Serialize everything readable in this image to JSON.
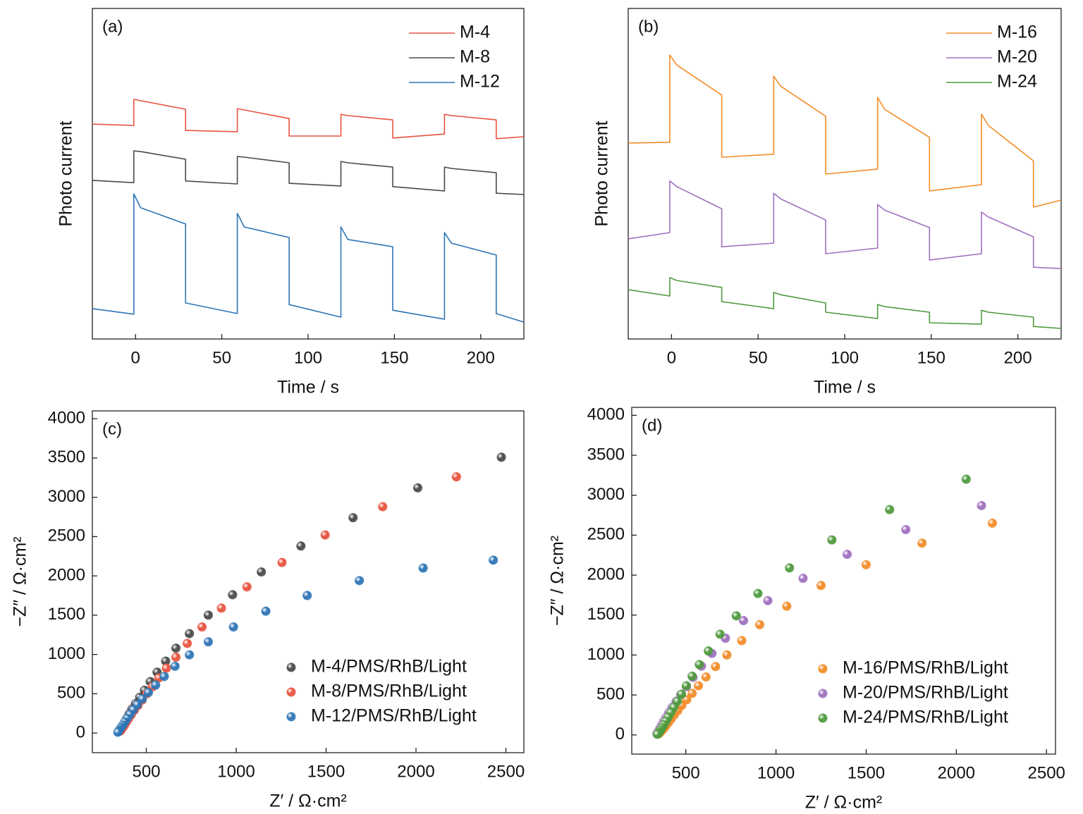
{
  "chart_data": [
    {
      "type": "line",
      "title": "(a)",
      "xlabel": "Time / s",
      "ylabel": "Photo current",
      "xlim": [
        -25,
        225
      ],
      "xticks": [
        0,
        50,
        100,
        150,
        200
      ],
      "ylim": [
        0,
        100
      ],
      "legend": "upper right",
      "x": [
        -25,
        -1,
        -1,
        3,
        29,
        29,
        59,
        59,
        63,
        89,
        89,
        119,
        119,
        123,
        149,
        149,
        179,
        179,
        183,
        209,
        209,
        225
      ],
      "series": [
        {
          "name": "M-4",
          "color": "#e8533f",
          "values": [
            65.0,
            64.6,
            72.5,
            72.1,
            69.5,
            63.1,
            62.7,
            69.7,
            69.3,
            66.7,
            61.4,
            61.4,
            68.0,
            67.6,
            66.3,
            60.8,
            62.0,
            68.0,
            67.6,
            66.3,
            60.6,
            61.2
          ]
        },
        {
          "name": "M-8",
          "color": "#4a4a4a",
          "values": [
            48.0,
            47.3,
            56.9,
            56.7,
            54.4,
            47.8,
            46.9,
            55.2,
            55.0,
            53.3,
            47.1,
            46.3,
            53.7,
            53.3,
            52.0,
            46.1,
            44.8,
            52.0,
            51.6,
            50.3,
            44.1,
            43.7
          ]
        },
        {
          "name": "M-12",
          "color": "#2e75b6",
          "values": [
            9.2,
            7.5,
            43.9,
            39.7,
            34.8,
            10.9,
            7.7,
            38.0,
            33.9,
            30.7,
            10.4,
            6.6,
            33.9,
            30.1,
            27.9,
            8.7,
            6.0,
            32.2,
            29.0,
            25.4,
            7.7,
            5.1
          ]
        }
      ]
    },
    {
      "type": "line",
      "title": "(b)",
      "xlabel": "Time / s",
      "ylabel": "Photo current",
      "xlim": [
        -25,
        225
      ],
      "xticks": [
        0,
        50,
        100,
        150,
        200
      ],
      "ylim": [
        0,
        100
      ],
      "legend": "upper right",
      "x": [
        -25,
        -1,
        -1,
        3,
        29,
        29,
        59,
        59,
        63,
        89,
        89,
        119,
        119,
        123,
        149,
        149,
        179,
        179,
        183,
        209,
        209,
        225
      ],
      "series": [
        {
          "name": "M-16",
          "color": "#f28c28",
          "values": [
            59.3,
            59.5,
            85.9,
            82.9,
            73.8,
            55.0,
            55.9,
            79.5,
            76.5,
            67.4,
            49.9,
            51.4,
            73.1,
            69.5,
            61.0,
            44.8,
            46.7,
            68.0,
            64.6,
            53.9,
            39.9,
            42.0
          ]
        },
        {
          "name": "M-20",
          "color": "#a070c0",
          "values": [
            30.3,
            32.2,
            47.8,
            46.1,
            39.4,
            27.9,
            29.0,
            44.1,
            42.4,
            36.0,
            25.8,
            27.5,
            40.7,
            39.0,
            33.7,
            23.9,
            25.8,
            38.4,
            36.9,
            30.9,
            21.7,
            21.3
          ]
        },
        {
          "name": "M-24",
          "color": "#4e9a3e",
          "values": [
            14.9,
            13.0,
            18.6,
            17.7,
            15.6,
            11.3,
            9.2,
            14.1,
            13.4,
            10.9,
            8.1,
            6.2,
            10.4,
            9.8,
            8.1,
            4.9,
            4.5,
            8.7,
            8.1,
            6.6,
            3.8,
            3.2
          ]
        }
      ]
    },
    {
      "type": "scatter",
      "title": "(c)",
      "xlabel": "Z′ / Ω·cm²",
      "ylabel": "−Z″ / Ω·cm²",
      "xlim": [
        200,
        2600
      ],
      "xticks": [
        500,
        1000,
        1500,
        2000,
        2500
      ],
      "ylim": [
        -250,
        4100
      ],
      "yticks": [
        0,
        500,
        1000,
        1500,
        2000,
        2500,
        3000,
        3500,
        4000
      ],
      "legend": "lower right",
      "series": [
        {
          "name": "M-4/PMS/RhB/Light",
          "color": "#4a4a4a",
          "x": [
            2475,
            2010,
            1650,
            1360,
            1140,
            980,
            845,
            740,
            665,
            608,
            560,
            522,
            490,
            463,
            440,
            420,
            405,
            392,
            382,
            373,
            366,
            360,
            355
          ],
          "values": [
            3510,
            3120,
            2740,
            2380,
            2050,
            1760,
            1500,
            1265,
            1080,
            915,
            775,
            655,
            545,
            455,
            375,
            305,
            245,
            190,
            145,
            105,
            75,
            50,
            30
          ]
        },
        {
          "name": "M-8/PMS/RhB/Light",
          "color": "#e8533f",
          "x": [
            2225,
            1815,
            1495,
            1255,
            1060,
            918,
            810,
            728,
            665,
            612,
            570,
            535,
            503,
            477,
            454,
            434,
            417,
            402,
            390,
            379,
            370,
            362,
            355
          ],
          "values": [
            3260,
            2880,
            2520,
            2170,
            1860,
            1590,
            1350,
            1140,
            965,
            825,
            700,
            590,
            500,
            420,
            350,
            290,
            235,
            185,
            140,
            100,
            70,
            45,
            25
          ]
        },
        {
          "name": "M-12/PMS/RhB/Light",
          "color": "#2e75b6",
          "x": [
            2430,
            2040,
            1685,
            1395,
            1165,
            985,
            845,
            740,
            660,
            600,
            552,
            512,
            478,
            450,
            428,
            409,
            393,
            380,
            369,
            360,
            352,
            346,
            342
          ],
          "values": [
            2200,
            2100,
            1940,
            1750,
            1550,
            1350,
            1160,
            995,
            850,
            720,
            610,
            515,
            435,
            360,
            295,
            235,
            185,
            140,
            100,
            70,
            45,
            25,
            10
          ]
        }
      ]
    },
    {
      "type": "scatter",
      "title": "(d)",
      "xlabel": "Z′ / Ω·cm²",
      "ylabel": "−Z″ / Ω·cm²",
      "xlim": [
        200,
        2550
      ],
      "xticks": [
        500,
        1000,
        1500,
        2000,
        2500
      ],
      "ylim": [
        -240,
        4100
      ],
      "yticks": [
        0,
        500,
        1000,
        1500,
        2000,
        2500,
        3000,
        3500,
        4000
      ],
      "legend": "lower right",
      "series": [
        {
          "name": "M-16/PMS/RhB/Light",
          "color": "#f28c28",
          "x": [
            2200,
            1810,
            1500,
            1250,
            1060,
            910,
            810,
            728,
            665,
            612,
            570,
            535,
            505,
            478,
            456,
            436,
            419,
            404,
            390,
            378,
            368,
            358,
            350
          ],
          "values": [
            2650,
            2400,
            2130,
            1870,
            1610,
            1380,
            1180,
            1000,
            855,
            725,
            615,
            520,
            440,
            370,
            305,
            250,
            200,
            155,
            115,
            80,
            55,
            30,
            15
          ]
        },
        {
          "name": "M-20/PMS/RhB/Light",
          "color": "#a070c0",
          "x": [
            2140,
            1720,
            1395,
            1150,
            955,
            820,
            720,
            645,
            587,
            540,
            503,
            472,
            446,
            424,
            406,
            390,
            377,
            366,
            357,
            350,
            344,
            340
          ],
          "values": [
            2870,
            2570,
            2260,
            1960,
            1680,
            1430,
            1210,
            1020,
            860,
            720,
            605,
            505,
            420,
            345,
            280,
            220,
            170,
            125,
            85,
            55,
            30,
            15
          ]
        },
        {
          "name": "M-24/PMS/RhB/Light",
          "color": "#4e9a3e",
          "x": [
            2055,
            1630,
            1310,
            1075,
            900,
            780,
            690,
            625,
            575,
            535,
            503,
            476,
            453,
            434,
            417,
            402,
            389,
            378,
            368,
            360,
            353,
            347,
            342
          ],
          "values": [
            3200,
            2820,
            2440,
            2090,
            1770,
            1490,
            1260,
            1050,
            880,
            735,
            615,
            510,
            420,
            345,
            280,
            220,
            170,
            125,
            90,
            60,
            35,
            18,
            8
          ]
        }
      ]
    }
  ]
}
